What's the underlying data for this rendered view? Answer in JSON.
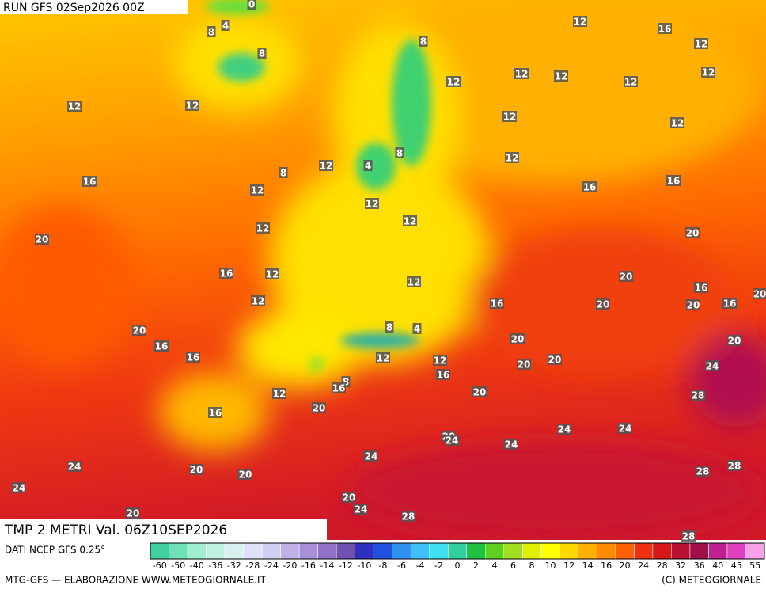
{
  "header": {
    "run": "RUN GFS 02Sep2026 00Z"
  },
  "footer": {
    "title": "TMP 2 METRI Val. 06Z10SEP2026",
    "source": "DATI NCEP GFS 0.25°",
    "credit": "MTG-GFS — ELABORAZIONE WWW.METEOGIORNALE.IT",
    "copyright": "(C) METEOGIORNALE"
  },
  "contour_labels": [
    0,
    4,
    8,
    8,
    12,
    16,
    12,
    8,
    12,
    12,
    12,
    12,
    12,
    12,
    12,
    12,
    12,
    8,
    12,
    12,
    4,
    8,
    16,
    12,
    16,
    16,
    12,
    12,
    12,
    20,
    20,
    16,
    12,
    20,
    12,
    16,
    12,
    16,
    20,
    16,
    20,
    20,
    8,
    4,
    20,
    16,
    20,
    20,
    16,
    12,
    12,
    20,
    20,
    24,
    16,
    8,
    16,
    12,
    20,
    28,
    20,
    16,
    20,
    24,
    24,
    24,
    24,
    24,
    24,
    24,
    20,
    20,
    28,
    28,
    20,
    24,
    28,
    20,
    28
  ],
  "colorbar": {
    "labels": [
      -60,
      -50,
      -40,
      -36,
      -32,
      -28,
      -24,
      -20,
      -16,
      -14,
      -12,
      -10,
      -8,
      -6,
      -4,
      -2,
      0,
      2,
      4,
      6,
      8,
      10,
      12,
      14,
      16,
      20,
      24,
      28,
      32,
      36,
      40,
      45,
      55
    ],
    "colors": [
      "#40d0a0",
      "#70e0b8",
      "#a0f0d0",
      "#c0f0e0",
      "#d8f0f0",
      "#e0e0f8",
      "#d0d0f0",
      "#c0b0e8",
      "#a890d8",
      "#9070c8",
      "#7050b0",
      "#3030c0",
      "#2050e0",
      "#3090f0",
      "#40c0f8",
      "#40e0f0",
      "#30d0a0",
      "#20c040",
      "#60d020",
      "#a0e020",
      "#e0f000",
      "#ffff00",
      "#ffd800",
      "#ffb000",
      "#ff8c00",
      "#ff6000",
      "#f03010",
      "#d81818",
      "#b81030",
      "#a01048",
      "#c02090",
      "#e040c0",
      "#f8a0e8"
    ]
  }
}
